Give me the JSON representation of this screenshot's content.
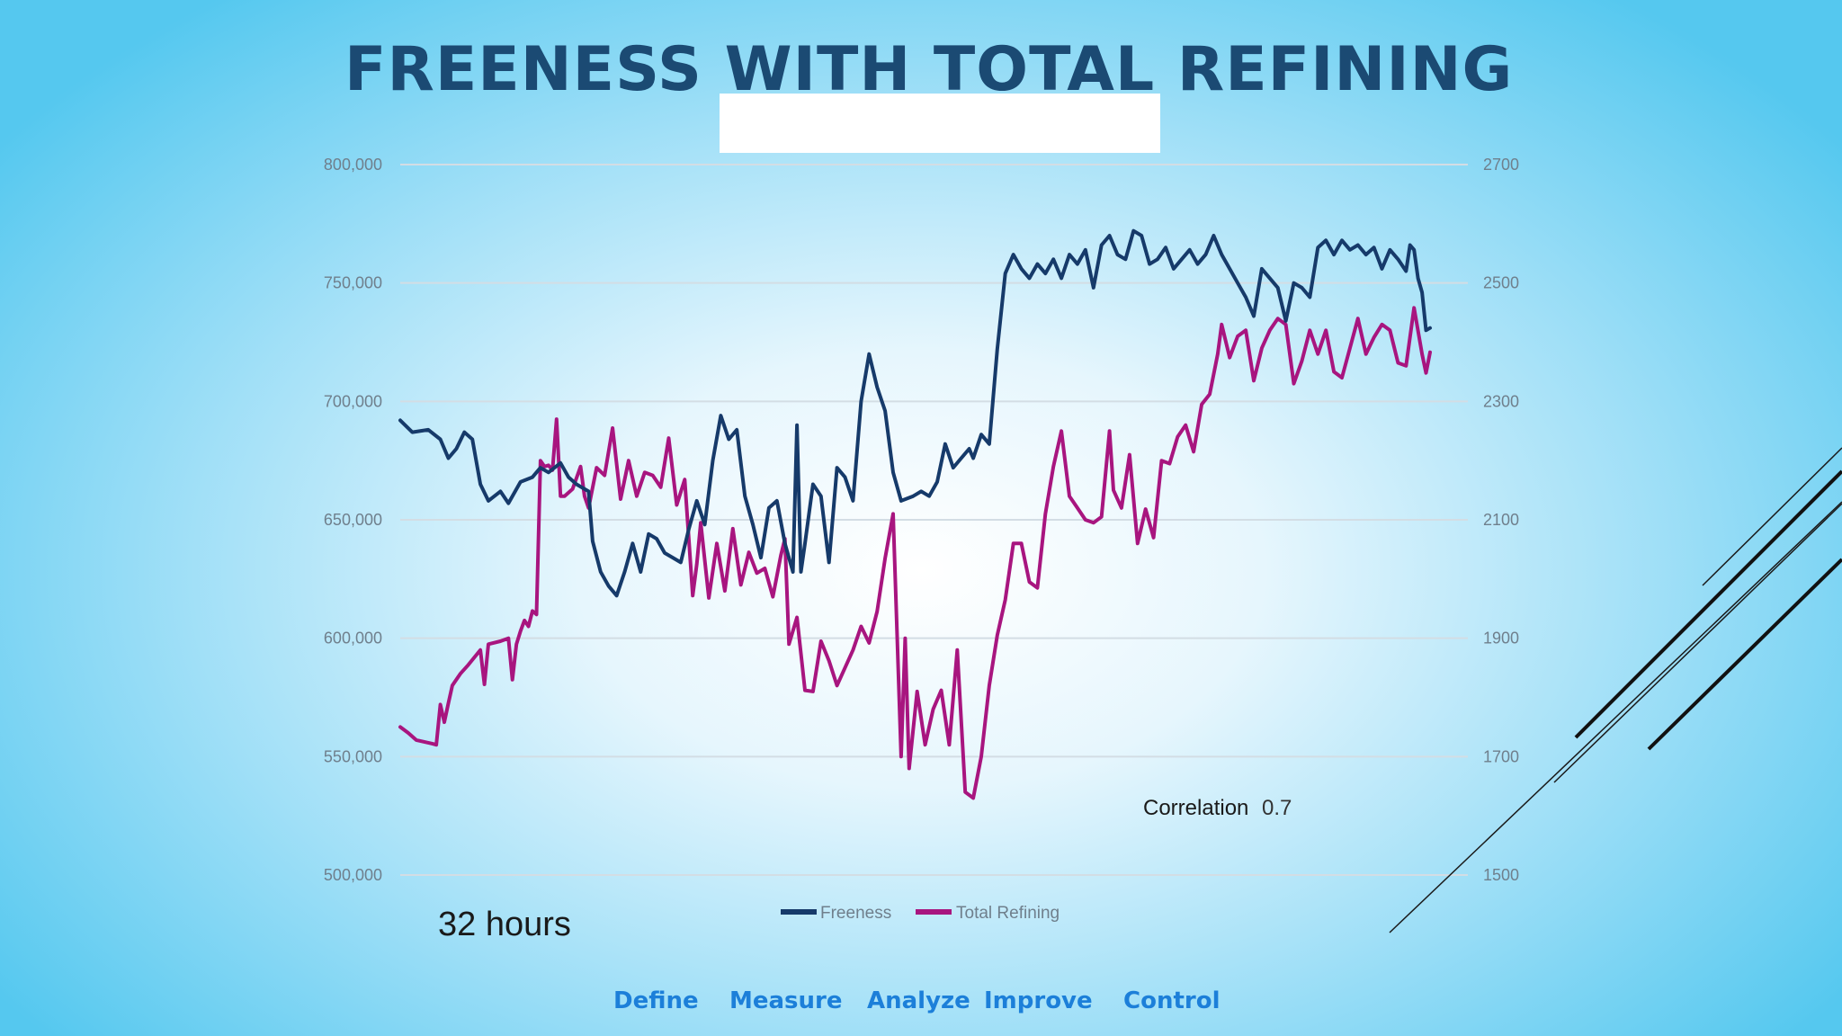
{
  "slide": {
    "title": "FREENESS WITH TOTAL REFINING",
    "correlation_label": "Correlation",
    "correlation_value": "0.7",
    "duration_note": "32 hours",
    "nav": [
      "Define",
      "Measure",
      "Analyze",
      "Improve",
      "Control"
    ],
    "colors": {
      "title": "#1b4a73",
      "nav": "#1c7fd9",
      "background": "#55c8ef"
    }
  },
  "chart_data": {
    "type": "line",
    "title": "",
    "xlabel": "",
    "ylabel": "",
    "grid": true,
    "legend_position": "bottom",
    "x_points": 176,
    "y_left": {
      "min": 500000,
      "max": 800000,
      "ticks": [
        "800,000",
        "750,000",
        "700,000",
        "650,000",
        "600,000",
        "550,000",
        "500,000"
      ]
    },
    "y_right": {
      "min": 1500,
      "max": 2700,
      "ticks": [
        "2700",
        "2500",
        "2300",
        "2100",
        "1900",
        "1700",
        "1500"
      ]
    },
    "series": [
      {
        "name": "Freeness",
        "axis": "left",
        "color": "#163a6a",
        "anchors": [
          [
            0,
            692000
          ],
          [
            3,
            687000
          ],
          [
            7,
            688000
          ],
          [
            10,
            684000
          ],
          [
            12,
            676000
          ],
          [
            14,
            680000
          ],
          [
            16,
            687000
          ],
          [
            18,
            684000
          ],
          [
            20,
            665000
          ],
          [
            22,
            658000
          ],
          [
            25,
            662000
          ],
          [
            27,
            657000
          ],
          [
            30,
            666000
          ],
          [
            33,
            668000
          ],
          [
            35,
            672000
          ],
          [
            37,
            670000
          ],
          [
            40,
            674000
          ],
          [
            42,
            668000
          ],
          [
            44,
            665000
          ],
          [
            47,
            662000
          ],
          [
            48,
            641000
          ],
          [
            50,
            628000
          ],
          [
            52,
            622000
          ],
          [
            54,
            618000
          ],
          [
            56,
            628000
          ],
          [
            58,
            640000
          ],
          [
            60,
            628000
          ],
          [
            62,
            644000
          ],
          [
            64,
            642000
          ],
          [
            66,
            636000
          ],
          [
            68,
            634000
          ],
          [
            70,
            632000
          ],
          [
            72,
            646000
          ],
          [
            74,
            658000
          ],
          [
            76,
            648000
          ],
          [
            78,
            675000
          ],
          [
            80,
            694000
          ],
          [
            82,
            684000
          ],
          [
            84,
            688000
          ],
          [
            86,
            660000
          ],
          [
            88,
            648000
          ],
          [
            90,
            634000
          ],
          [
            92,
            655000
          ],
          [
            94,
            658000
          ],
          [
            96,
            640000
          ],
          [
            98,
            628000
          ],
          [
            99,
            690000
          ],
          [
            100,
            628000
          ],
          [
            101,
            640000
          ],
          [
            103,
            665000
          ],
          [
            105,
            660000
          ],
          [
            107,
            632000
          ],
          [
            109,
            672000
          ],
          [
            111,
            668000
          ],
          [
            113,
            658000
          ],
          [
            115,
            700000
          ],
          [
            117,
            720000
          ],
          [
            119,
            706000
          ],
          [
            121,
            696000
          ],
          [
            123,
            670000
          ],
          [
            125,
            658000
          ],
          [
            128,
            660000
          ],
          [
            130,
            662000
          ],
          [
            132,
            660000
          ],
          [
            134,
            666000
          ],
          [
            136,
            682000
          ],
          [
            138,
            672000
          ],
          [
            140,
            676000
          ],
          [
            142,
            680000
          ],
          [
            143,
            676000
          ],
          [
            145,
            686000
          ],
          [
            147,
            682000
          ],
          [
            149,
            722000
          ],
          [
            151,
            754000
          ],
          [
            153,
            762000
          ],
          [
            155,
            756000
          ],
          [
            157,
            752000
          ],
          [
            159,
            758000
          ],
          [
            161,
            754000
          ],
          [
            163,
            760000
          ],
          [
            165,
            752000
          ],
          [
            167,
            762000
          ],
          [
            169,
            758000
          ],
          [
            171,
            764000
          ],
          [
            173,
            748000
          ],
          [
            175,
            766000
          ],
          [
            177,
            770000
          ],
          [
            179,
            762000
          ],
          [
            181,
            760000
          ],
          [
            183,
            772000
          ],
          [
            185,
            770000
          ],
          [
            187,
            758000
          ],
          [
            189,
            760000
          ],
          [
            191,
            765000
          ],
          [
            193,
            756000
          ],
          [
            195,
            760000
          ],
          [
            197,
            764000
          ],
          [
            199,
            758000
          ],
          [
            201,
            762000
          ],
          [
            203,
            770000
          ],
          [
            205,
            762000
          ],
          [
            207,
            756000
          ],
          [
            209,
            750000
          ],
          [
            211,
            744000
          ],
          [
            213,
            736000
          ],
          [
            215,
            756000
          ],
          [
            217,
            752000
          ],
          [
            219,
            748000
          ],
          [
            221,
            734000
          ],
          [
            223,
            750000
          ],
          [
            225,
            748000
          ],
          [
            227,
            744000
          ],
          [
            229,
            765000
          ],
          [
            231,
            768000
          ],
          [
            233,
            762000
          ],
          [
            235,
            768000
          ],
          [
            237,
            764000
          ],
          [
            239,
            766000
          ],
          [
            241,
            762000
          ],
          [
            243,
            765000
          ],
          [
            245,
            756000
          ],
          [
            247,
            764000
          ],
          [
            249,
            760000
          ],
          [
            251,
            755000
          ],
          [
            252,
            766000
          ],
          [
            253,
            764000
          ],
          [
            254,
            752000
          ],
          [
            255,
            746000
          ],
          [
            256,
            730000
          ],
          [
            257,
            731000
          ]
        ]
      },
      {
        "name": "Total Refining",
        "axis": "right",
        "color": "#a8157f",
        "anchors": [
          [
            0,
            1750
          ],
          [
            2,
            1740
          ],
          [
            4,
            1728
          ],
          [
            6,
            1725
          ],
          [
            8,
            1722
          ],
          [
            9,
            1720
          ],
          [
            10,
            1788
          ],
          [
            11,
            1758
          ],
          [
            12,
            1790
          ],
          [
            13,
            1820
          ],
          [
            15,
            1840
          ],
          [
            17,
            1855
          ],
          [
            20,
            1880
          ],
          [
            21,
            1822
          ],
          [
            22,
            1890
          ],
          [
            25,
            1895
          ],
          [
            27,
            1900
          ],
          [
            28,
            1830
          ],
          [
            29,
            1890
          ],
          [
            30,
            1912
          ],
          [
            31,
            1930
          ],
          [
            32,
            1920
          ],
          [
            33,
            1946
          ],
          [
            34,
            1940
          ],
          [
            35,
            2200
          ],
          [
            36,
            2190
          ],
          [
            37,
            2192
          ],
          [
            38,
            2184
          ],
          [
            39,
            2270
          ],
          [
            40,
            2140
          ],
          [
            41,
            2140
          ],
          [
            43,
            2152
          ],
          [
            45,
            2190
          ],
          [
            46,
            2140
          ],
          [
            47,
            2120
          ],
          [
            49,
            2188
          ],
          [
            51,
            2175
          ],
          [
            53,
            2255
          ],
          [
            55,
            2135
          ],
          [
            57,
            2200
          ],
          [
            59,
            2140
          ],
          [
            61,
            2180
          ],
          [
            63,
            2175
          ],
          [
            65,
            2155
          ],
          [
            67,
            2238
          ],
          [
            69,
            2125
          ],
          [
            71,
            2168
          ],
          [
            73,
            1972
          ],
          [
            74,
            2025
          ],
          [
            75,
            2095
          ],
          [
            77,
            1968
          ],
          [
            79,
            2060
          ],
          [
            81,
            1980
          ],
          [
            83,
            2085
          ],
          [
            85,
            1990
          ],
          [
            87,
            2045
          ],
          [
            89,
            2010
          ],
          [
            91,
            2018
          ],
          [
            93,
            1970
          ],
          [
            95,
            2040
          ],
          [
            96,
            2068
          ],
          [
            97,
            1890
          ],
          [
            99,
            1935
          ],
          [
            101,
            1812
          ],
          [
            103,
            1810
          ],
          [
            105,
            1895
          ],
          [
            107,
            1862
          ],
          [
            109,
            1820
          ],
          [
            111,
            1850
          ],
          [
            113,
            1880
          ],
          [
            115,
            1920
          ],
          [
            117,
            1892
          ],
          [
            119,
            1945
          ],
          [
            121,
            2035
          ],
          [
            123,
            2110
          ],
          [
            125,
            1700
          ],
          [
            126,
            1900
          ],
          [
            127,
            1680
          ],
          [
            129,
            1810
          ],
          [
            131,
            1720
          ],
          [
            133,
            1780
          ],
          [
            135,
            1812
          ],
          [
            137,
            1720
          ],
          [
            139,
            1880
          ],
          [
            141,
            1640
          ],
          [
            143,
            1630
          ],
          [
            145,
            1700
          ],
          [
            147,
            1820
          ],
          [
            149,
            1905
          ],
          [
            151,
            1965
          ],
          [
            153,
            2060
          ],
          [
            155,
            2060
          ],
          [
            157,
            1995
          ],
          [
            159,
            1985
          ],
          [
            161,
            2110
          ],
          [
            163,
            2190
          ],
          [
            165,
            2250
          ],
          [
            167,
            2140
          ],
          [
            169,
            2120
          ],
          [
            171,
            2100
          ],
          [
            173,
            2095
          ],
          [
            175,
            2105
          ],
          [
            177,
            2250
          ],
          [
            178,
            2150
          ],
          [
            180,
            2120
          ],
          [
            182,
            2210
          ],
          [
            184,
            2060
          ],
          [
            186,
            2118
          ],
          [
            188,
            2070
          ],
          [
            190,
            2200
          ],
          [
            192,
            2195
          ],
          [
            194,
            2240
          ],
          [
            196,
            2260
          ],
          [
            198,
            2215
          ],
          [
            200,
            2295
          ],
          [
            202,
            2312
          ],
          [
            204,
            2380
          ],
          [
            205,
            2430
          ],
          [
            207,
            2374
          ],
          [
            209,
            2410
          ],
          [
            211,
            2420
          ],
          [
            213,
            2335
          ],
          [
            215,
            2390
          ],
          [
            217,
            2420
          ],
          [
            219,
            2440
          ],
          [
            221,
            2430
          ],
          [
            223,
            2330
          ],
          [
            225,
            2368
          ],
          [
            227,
            2420
          ],
          [
            229,
            2380
          ],
          [
            231,
            2420
          ],
          [
            233,
            2350
          ],
          [
            235,
            2340
          ],
          [
            237,
            2390
          ],
          [
            239,
            2440
          ],
          [
            241,
            2380
          ],
          [
            243,
            2408
          ],
          [
            245,
            2430
          ],
          [
            247,
            2420
          ],
          [
            249,
            2365
          ],
          [
            251,
            2360
          ],
          [
            253,
            2458
          ],
          [
            255,
            2380
          ],
          [
            256,
            2348
          ],
          [
            257,
            2383
          ]
        ]
      }
    ]
  }
}
